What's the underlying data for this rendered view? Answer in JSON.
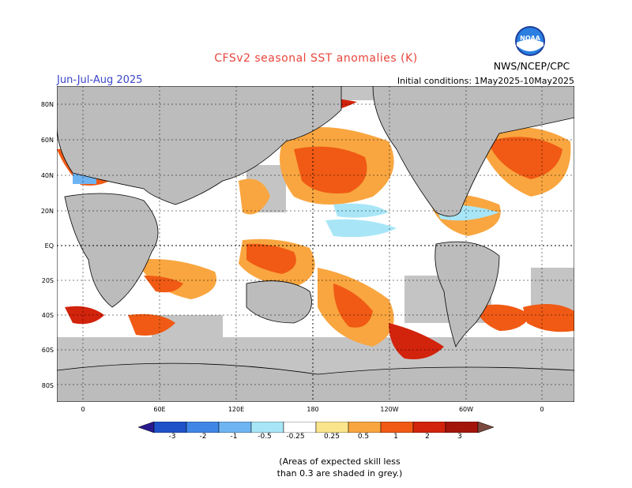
{
  "header": {
    "title": "CFSv2 seasonal SST anomalies (K)",
    "season": "Jun-Jul-Aug 2025",
    "initial_conditions": "Initial conditions: 1May2025-10May2025",
    "agency": "NWS/NCEP/CPC",
    "logo_text": "NOAA"
  },
  "axes": {
    "lat_ticks": [
      "80N",
      "60N",
      "40N",
      "20N",
      "EQ",
      "20S",
      "40S",
      "60S",
      "80S"
    ],
    "lon_ticks": [
      "0",
      "60E",
      "120E",
      "180",
      "120W",
      "60W",
      "0"
    ]
  },
  "colorbar": {
    "labels": [
      "-3",
      "-2",
      "-1",
      "-0.5",
      "-0.25",
      "0.25",
      "0.5",
      "1",
      "2",
      "3"
    ],
    "colors": [
      "#2a1a8f",
      "#1f52c8",
      "#3f86e6",
      "#6fb4f2",
      "#a8e6f7",
      "#ffffff",
      "#fbe58c",
      "#f9a640",
      "#f05a14",
      "#d2230c",
      "#a3150b",
      "#7a4a3e"
    ]
  },
  "colors": {
    "land": "#bcbcbc",
    "no_skill": "#c4c4c4",
    "title": "#e8463c",
    "season": "#3b46c9"
  },
  "note": {
    "line1": "(Areas of expected skill less",
    "line2": "than 0.3 are shaded in grey.)"
  }
}
